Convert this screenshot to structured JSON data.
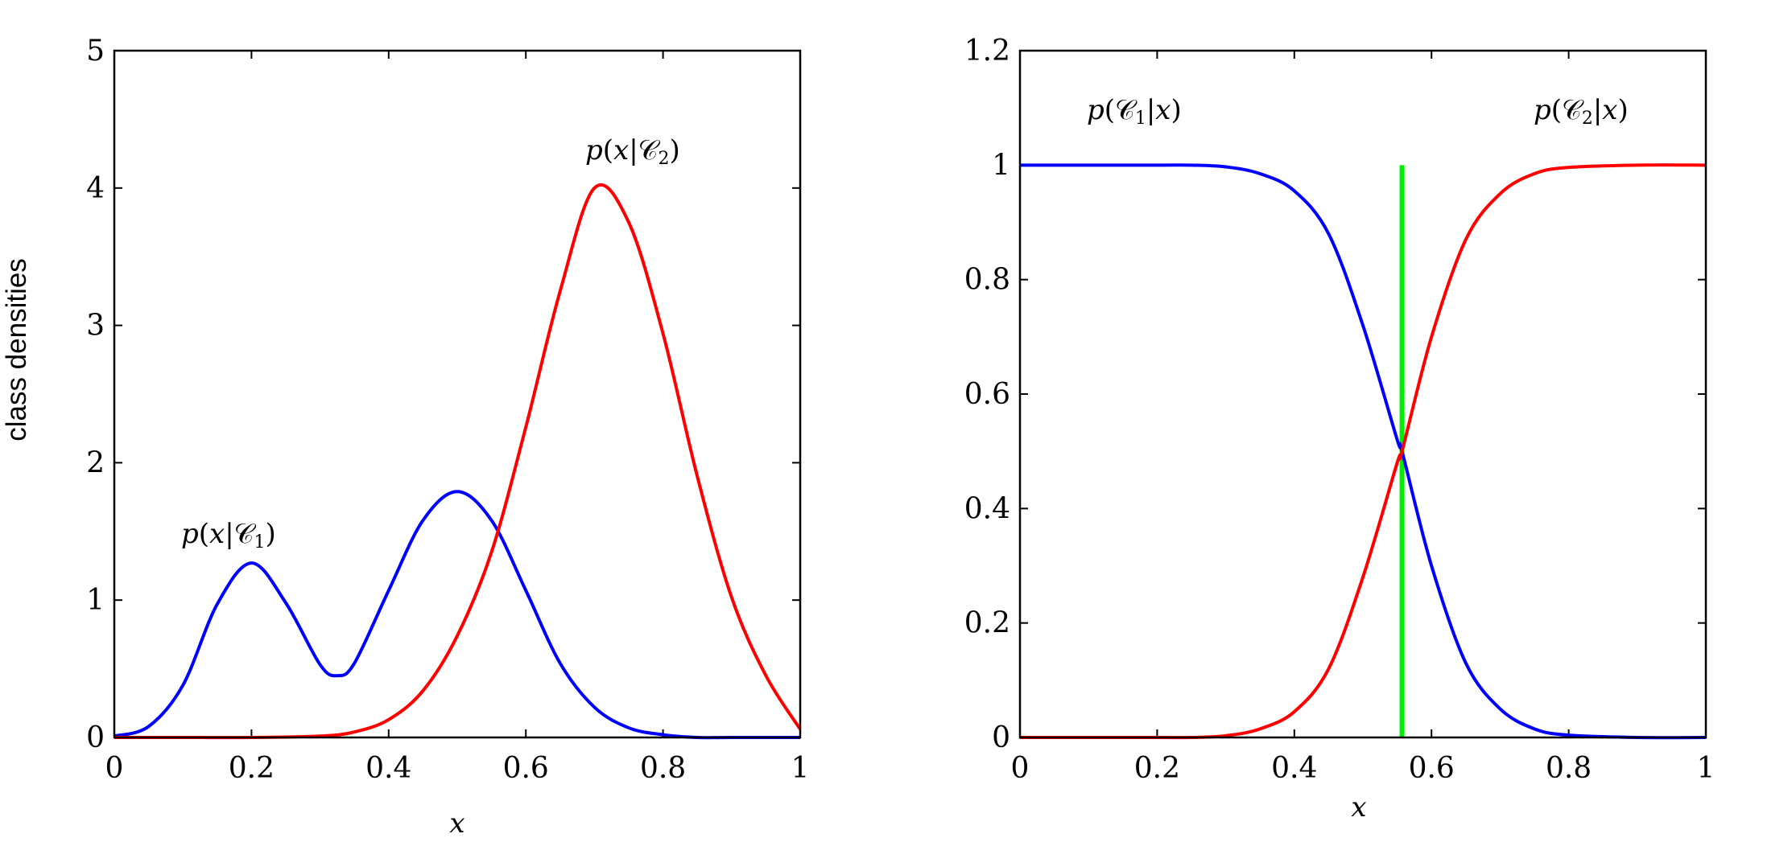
{
  "chart_data": [
    {
      "type": "line",
      "title": "",
      "xlabel": "x",
      "ylabel": "class densities",
      "xlim": [
        0,
        1
      ],
      "ylim": [
        0,
        5
      ],
      "xticks": [
        "0",
        "0.2",
        "0.4",
        "0.6",
        "0.8",
        "1"
      ],
      "yticks": [
        "0",
        "1",
        "2",
        "3",
        "4",
        "5"
      ],
      "grid": false,
      "annotations": [
        {
          "text": "p(x|C1)",
          "x": 0.18,
          "y": 1.45
        },
        {
          "text": "p(x|C2)",
          "x": 0.74,
          "y": 4.25
        }
      ],
      "series": [
        {
          "color": "#0000ff",
          "x": [
            0,
            0.05,
            0.1,
            0.15,
            0.2,
            0.25,
            0.3,
            0.325,
            0.35,
            0.4,
            0.45,
            0.5,
            0.55,
            0.6,
            0.65,
            0.7,
            0.75,
            0.8,
            0.85,
            0.9,
            0.95,
            1
          ],
          "y": [
            0.01,
            0.08,
            0.38,
            0.97,
            1.27,
            0.98,
            0.53,
            0.45,
            0.54,
            1.07,
            1.58,
            1.79,
            1.58,
            1.07,
            0.54,
            0.22,
            0.07,
            0.02,
            0.0,
            0.0,
            0.0,
            0.0
          ]
        },
        {
          "color": "#ff0000",
          "x": [
            0,
            0.1,
            0.2,
            0.3,
            0.35,
            0.4,
            0.45,
            0.5,
            0.55,
            0.6,
            0.65,
            0.7,
            0.75,
            0.8,
            0.85,
            0.9,
            0.95,
            1
          ],
          "y": [
            0.0,
            0.0,
            0.0,
            0.01,
            0.04,
            0.13,
            0.34,
            0.74,
            1.35,
            2.26,
            3.25,
            4.0,
            3.75,
            2.94,
            1.9,
            1.02,
            0.45,
            0.06
          ]
        }
      ]
    },
    {
      "type": "line",
      "title": "",
      "xlabel": "x",
      "ylabel": "",
      "xlim": [
        0,
        1
      ],
      "ylim": [
        0,
        1.2
      ],
      "xticks": [
        "0",
        "0.2",
        "0.4",
        "0.6",
        "0.8",
        "1"
      ],
      "yticks": [
        "0",
        "0.2",
        "0.4",
        "0.6",
        "0.8",
        "1",
        "1.2"
      ],
      "grid": false,
      "annotations": [
        {
          "text": "p(C1|x)",
          "x": 0.1,
          "y": 1.1
        },
        {
          "text": "p(C2|x)",
          "x": 0.78,
          "y": 1.1
        }
      ],
      "vertical_line": {
        "x": 0.557,
        "y_range": [
          0,
          1
        ],
        "color": "#00ee00"
      },
      "series": [
        {
          "color": "#0000ff",
          "x": [
            0,
            0.1,
            0.2,
            0.25,
            0.3,
            0.35,
            0.4,
            0.45,
            0.5,
            0.55,
            0.557,
            0.6,
            0.65,
            0.7,
            0.75,
            0.8,
            0.9,
            1
          ],
          "y": [
            1.0,
            1.0,
            1.0,
            1.0,
            0.997,
            0.985,
            0.955,
            0.88,
            0.72,
            0.52,
            0.5,
            0.3,
            0.13,
            0.05,
            0.015,
            0.004,
            0.0,
            0.0
          ]
        },
        {
          "color": "#ff0000",
          "x": [
            0,
            0.1,
            0.2,
            0.25,
            0.3,
            0.35,
            0.4,
            0.45,
            0.5,
            0.55,
            0.557,
            0.6,
            0.65,
            0.7,
            0.75,
            0.8,
            0.9,
            1
          ],
          "y": [
            0.0,
            0.0,
            0.0,
            0.0,
            0.003,
            0.015,
            0.045,
            0.12,
            0.28,
            0.48,
            0.5,
            0.7,
            0.87,
            0.95,
            0.985,
            0.996,
            1.0,
            1.0
          ]
        }
      ]
    }
  ]
}
